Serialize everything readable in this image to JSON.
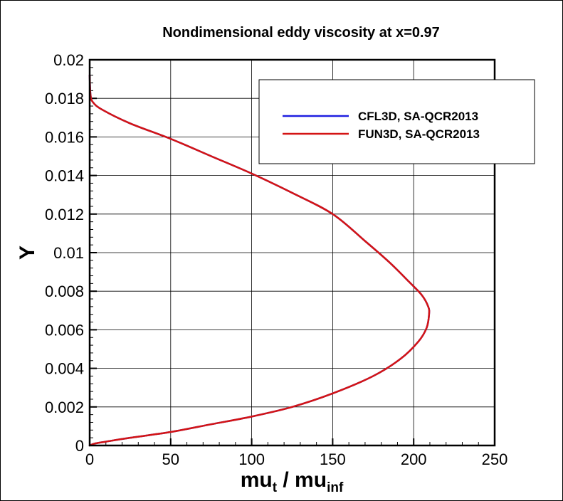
{
  "chart_data": {
    "type": "line",
    "title": "Nondimensional eddy viscosity at x=0.97",
    "xlabel": {
      "main": "mu",
      "sub1": "t",
      "sep": " / mu",
      "sub2": "inf"
    },
    "ylabel": "Y",
    "xlim": [
      0,
      250
    ],
    "ylim": [
      0,
      0.02
    ],
    "x_ticks": [
      0,
      50,
      100,
      150,
      200,
      250
    ],
    "x_tick_labels": [
      "0",
      "50",
      "100",
      "150",
      "200",
      "250"
    ],
    "y_ticks": [
      0,
      0.002,
      0.004,
      0.006,
      0.008,
      0.01,
      0.012,
      0.014,
      0.016,
      0.018,
      0.02
    ],
    "y_tick_labels": [
      "0",
      "0.002",
      "0.004",
      "0.006",
      "0.008",
      "0.01",
      "0.012",
      "0.014",
      "0.016",
      "0.018",
      "0.02"
    ],
    "grid": true,
    "legend_position": "top-right",
    "series": [
      {
        "name": "CFL3D, SA-QCR2013",
        "color": "#1f1fe0",
        "x": [
          0,
          3,
          10,
          25,
          50,
          75,
          100,
          125,
          150,
          175,
          192,
          203,
          208,
          209.5,
          209,
          205,
          197,
          185,
          170,
          150,
          125,
          100,
          75,
          50,
          25,
          8,
          2,
          0.5,
          0
        ],
        "y": [
          0,
          0.0001,
          0.0002,
          0.0004,
          0.0007,
          0.0011,
          0.0015,
          0.002,
          0.0027,
          0.0036,
          0.0045,
          0.0054,
          0.0061,
          0.0068,
          0.0072,
          0.0078,
          0.0085,
          0.0095,
          0.0106,
          0.012,
          0.0131,
          0.0141,
          0.015,
          0.0159,
          0.0167,
          0.0174,
          0.0178,
          0.0182,
          0.0192
        ]
      },
      {
        "name": "FUN3D, SA-QCR2013",
        "color": "#d41414",
        "x": [
          0,
          3,
          10,
          25,
          50,
          75,
          100,
          125,
          150,
          175,
          192,
          203,
          208,
          209.5,
          209,
          205,
          197,
          185,
          170,
          150,
          125,
          100,
          75,
          50,
          25,
          8,
          2,
          0.5,
          0
        ],
        "y": [
          0,
          0.0001,
          0.0002,
          0.0004,
          0.0007,
          0.0011,
          0.0015,
          0.002,
          0.0027,
          0.0036,
          0.0045,
          0.0054,
          0.0061,
          0.0068,
          0.0072,
          0.0078,
          0.0085,
          0.0095,
          0.0106,
          0.012,
          0.0131,
          0.0141,
          0.015,
          0.0159,
          0.0167,
          0.0174,
          0.0178,
          0.0182,
          0.0192
        ]
      }
    ]
  }
}
